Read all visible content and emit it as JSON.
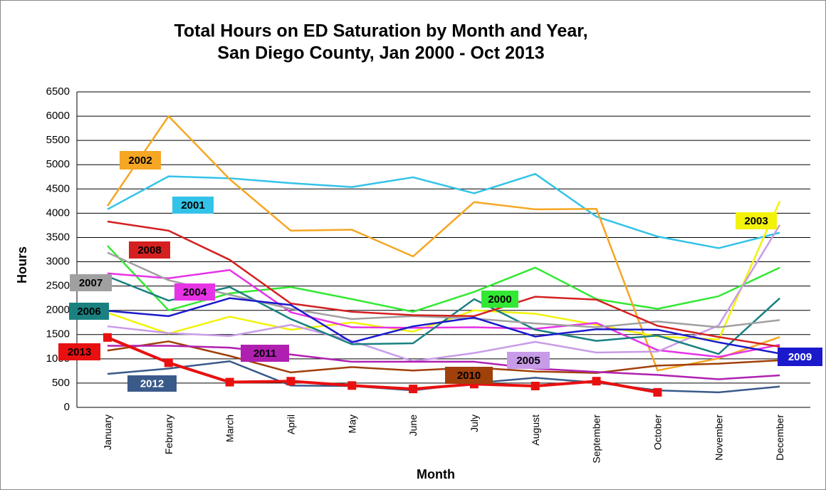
{
  "chart_data": {
    "type": "line",
    "title": [
      "Total Hours on ED Saturation by Month and Year,",
      "San Diego County, Jan 2000 - Oct 2013"
    ],
    "x_label": "Month",
    "y_label": "Hours",
    "categories": [
      "January",
      "February",
      "March",
      "April",
      "May",
      "June",
      "July",
      "August",
      "September",
      "October",
      "November",
      "December"
    ],
    "ylim": [
      0,
      6500
    ],
    "yticks": [
      0,
      500,
      1000,
      1500,
      2000,
      2500,
      3000,
      3500,
      4000,
      4500,
      5000,
      5500,
      6000,
      6500
    ],
    "grid": true,
    "series": [
      {
        "name": "2000",
        "color": "#33e833",
        "values": [
          3330,
          2000,
          2350,
          2480,
          2230,
          1970,
          2380,
          2880,
          2230,
          2030,
          2290,
          2880
        ]
      },
      {
        "name": "2001",
        "color": "#33c3e8",
        "values": [
          4080,
          4760,
          4720,
          4620,
          4540,
          4740,
          4410,
          4810,
          3930,
          3520,
          3280,
          3600
        ]
      },
      {
        "name": "2002",
        "color": "#f5a623",
        "values": [
          4150,
          6000,
          4700,
          3640,
          3660,
          3110,
          4230,
          4080,
          4090,
          760,
          1010,
          1450
        ]
      },
      {
        "name": "2003",
        "color": "#f2f20a",
        "values": [
          1950,
          1520,
          1870,
          1600,
          1750,
          1560,
          2000,
          1930,
          1700,
          1460,
          1400,
          4250
        ]
      },
      {
        "name": "2004",
        "color": "#e633e6",
        "values": [
          2760,
          2660,
          2830,
          1960,
          1650,
          1640,
          1650,
          1620,
          1740,
          1180,
          1040,
          1290
        ]
      },
      {
        "name": "2005",
        "color": "#c89be8",
        "values": [
          1670,
          1530,
          1470,
          1700,
          1370,
          950,
          1120,
          1350,
          1130,
          1150,
          1690,
          3760
        ]
      },
      {
        "name": "2006",
        "color": "#1a8080",
        "values": [
          2700,
          2200,
          2480,
          1820,
          1300,
          1320,
          2230,
          1600,
          1370,
          1480,
          1100,
          2250
        ]
      },
      {
        "name": "2007",
        "color": "#a0a0a0",
        "values": [
          3190,
          2620,
          2320,
          2030,
          1820,
          1880,
          1830,
          1730,
          1650,
          1770,
          1650,
          1800
        ]
      },
      {
        "name": "2008",
        "color": "#d42020",
        "values": [
          3830,
          3640,
          3040,
          2140,
          1970,
          1900,
          1880,
          2280,
          2220,
          1680,
          1450,
          1250
        ]
      },
      {
        "name": "2009",
        "color": "#1a1acc",
        "values": [
          1990,
          1880,
          2250,
          2110,
          1340,
          1670,
          1850,
          1460,
          1610,
          1600,
          1340,
          1110
        ]
      },
      {
        "name": "2010",
        "color": "#a0400a",
        "values": [
          1170,
          1360,
          1060,
          720,
          830,
          760,
          820,
          740,
          710,
          860,
          900,
          970
        ]
      },
      {
        "name": "2011",
        "color": "#b020b0",
        "values": [
          1270,
          1270,
          1230,
          1090,
          940,
          940,
          940,
          800,
          730,
          670,
          580,
          660
        ]
      },
      {
        "name": "2012",
        "color": "#3a5a8a",
        "values": [
          690,
          800,
          950,
          450,
          440,
          350,
          500,
          610,
          510,
          350,
          310,
          430
        ]
      },
      {
        "name": "2013",
        "color": "#e81010",
        "marker": "square",
        "values": [
          1440,
          920,
          520,
          540,
          450,
          380,
          480,
          440,
          540,
          310,
          null,
          null
        ]
      }
    ]
  }
}
